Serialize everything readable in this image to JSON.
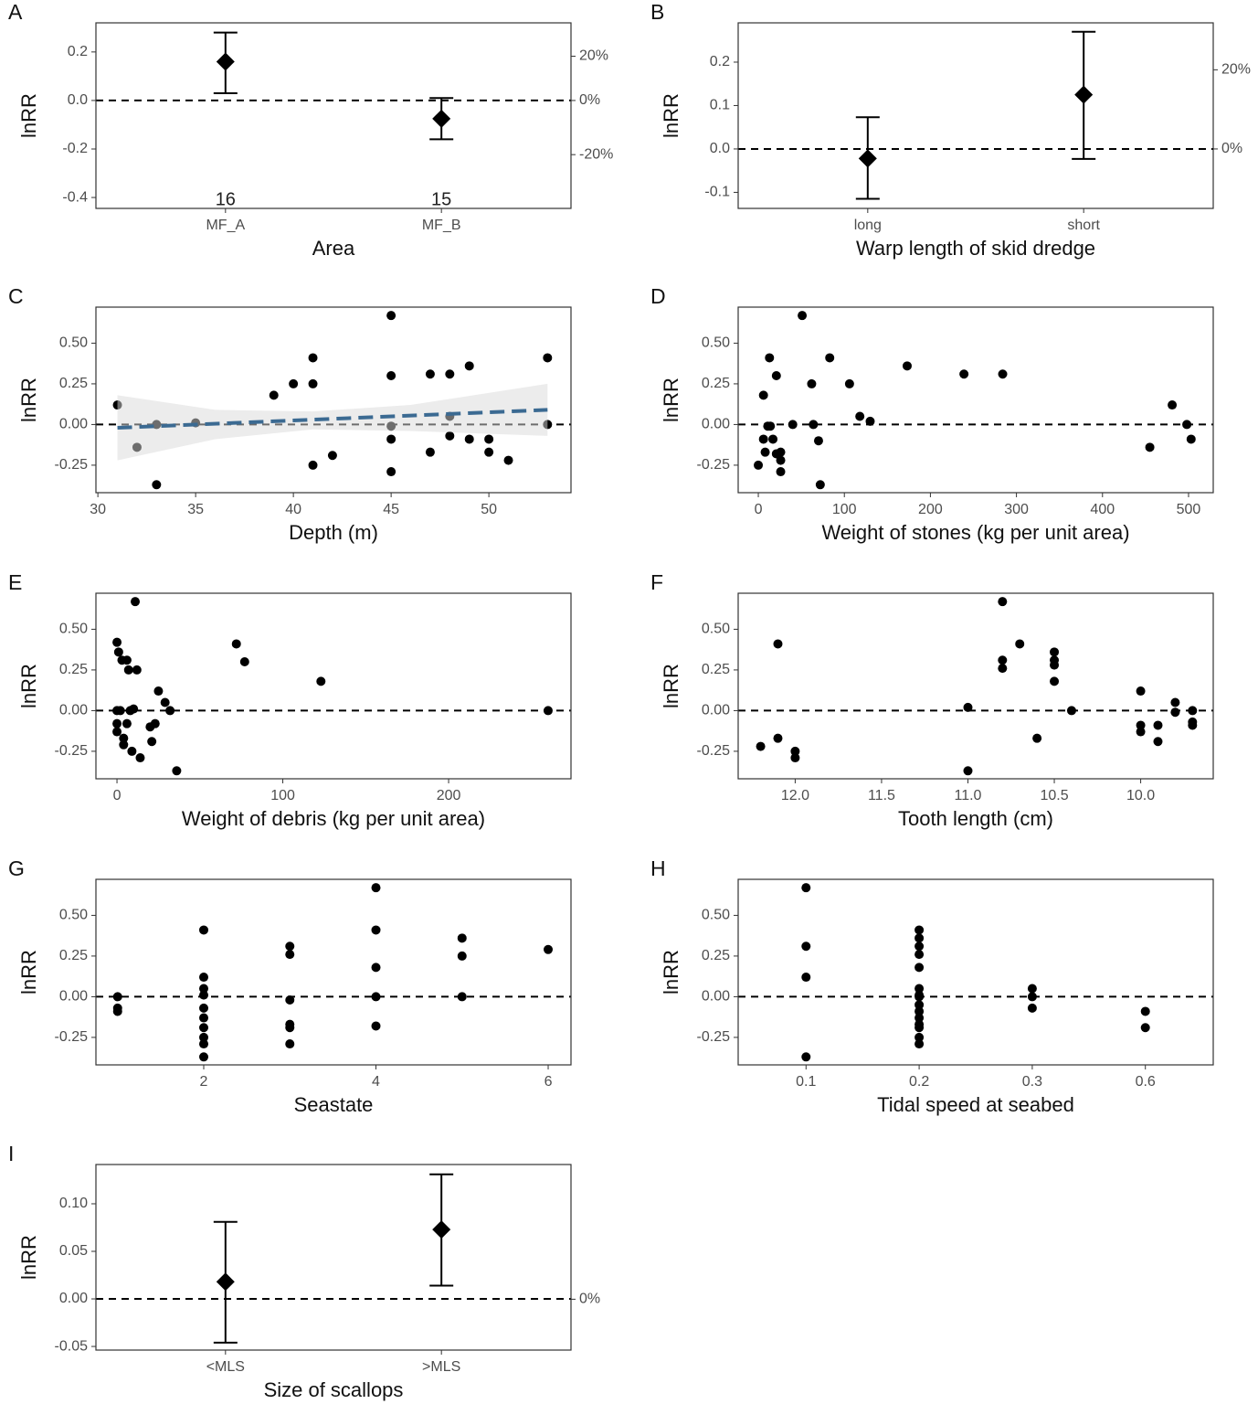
{
  "chart_data": [
    {
      "panel": "A",
      "type": "pointrange",
      "xlabel": "Area",
      "ylabel": "lnRR",
      "categories": [
        "MF_A",
        "MF_B"
      ],
      "values": [
        0.16,
        -0.075
      ],
      "lower": [
        0.03,
        -0.16
      ],
      "upper": [
        0.28,
        0.01
      ],
      "counts": [
        16,
        15
      ],
      "ylim": [
        -0.445,
        0.32
      ],
      "yticks": [
        0.2,
        {
          "value": 0,
          "label": "0.0"
        },
        -0.2,
        -0.4
      ],
      "y2lim": [
        -35.9,
        37.7
      ],
      "y2transform": "log-ratio",
      "y2ticks": [
        {
          "value": 20,
          "label": "20%"
        },
        {
          "value": 0,
          "label": "0%"
        },
        {
          "value": -20,
          "label": "-20%"
        }
      ],
      "refline": 0,
      "color": "#000000"
    },
    {
      "panel": "B",
      "type": "pointrange",
      "xlabel": "Warp length of skid dredge",
      "ylabel": "lnRR",
      "categories": [
        "long",
        "short"
      ],
      "values": [
        -0.022,
        0.125
      ],
      "lower": [
        -0.115,
        -0.023
      ],
      "upper": [
        0.073,
        0.27
      ],
      "ylim": [
        -0.137,
        0.2905
      ],
      "yticks": [
        0.2,
        0.1,
        {
          "value": 0,
          "label": "0.0"
        },
        -0.1
      ],
      "y2lim": [
        -12.8,
        33.7
      ],
      "y2transform": "log-ratio",
      "y2ticks": [
        {
          "value": 20,
          "label": "20%"
        },
        {
          "value": 0,
          "label": "0%"
        }
      ],
      "refline": 0,
      "color": "#000000"
    },
    {
      "panel": "C",
      "type": "scatter",
      "xlabel": "Depth (m)",
      "ylabel": "lnRR",
      "x": [
        31,
        32,
        33,
        33,
        35,
        39,
        40,
        41,
        41,
        41,
        42,
        45,
        45,
        45,
        45,
        45,
        47,
        47,
        48,
        48,
        48,
        49,
        49,
        50,
        50,
        51,
        53,
        53
      ],
      "y": [
        0.12,
        -0.14,
        0.0,
        -0.37,
        0.01,
        0.18,
        0.25,
        0.41,
        0.25,
        -0.25,
        -0.19,
        0.67,
        0.3,
        -0.01,
        -0.09,
        -0.29,
        0.31,
        -0.17,
        0.31,
        0.05,
        -0.07,
        0.36,
        -0.09,
        -0.09,
        -0.17,
        -0.22,
        0.41,
        0.0
      ],
      "band": {
        "x": [
          31,
          36,
          41,
          46,
          53
        ],
        "lower": [
          -0.22,
          -0.09,
          -0.03,
          -0.04,
          -0.07
        ],
        "upper": [
          0.18,
          0.09,
          0.08,
          0.12,
          0.25
        ],
        "color": "#d9d9d9"
      },
      "trend": {
        "x": [
          31,
          53
        ],
        "y": [
          -0.02,
          0.09
        ],
        "color": "#3b6a92"
      },
      "xlim": [
        29.9,
        54.2
      ],
      "xticks": [
        30,
        35,
        40,
        45,
        50
      ],
      "ylim": [
        -0.419,
        0.7215
      ],
      "yticks": [
        {
          "value": 0.5,
          "label": "0.50"
        },
        0.25,
        {
          "value": 0,
          "label": "0.00"
        },
        -0.25
      ],
      "refline": 0,
      "color": "#000000"
    },
    {
      "panel": "D",
      "type": "scatter",
      "xlabel": "Weight of stones (kg per unit area)",
      "ylabel": "lnRR",
      "x": [
        0,
        6,
        6,
        8,
        13,
        11,
        14,
        17,
        21,
        21,
        26,
        26,
        26,
        51,
        40,
        62,
        64,
        70,
        72,
        83,
        106,
        118,
        130,
        173,
        239,
        284,
        455,
        481,
        498,
        503
      ],
      "y": [
        -0.25,
        0.18,
        -0.09,
        -0.17,
        0.41,
        -0.01,
        -0.01,
        -0.09,
        0.3,
        -0.18,
        -0.22,
        -0.29,
        -0.17,
        0.67,
        0.0,
        0.25,
        0.0,
        -0.1,
        -0.37,
        0.41,
        0.25,
        0.05,
        0.02,
        0.36,
        0.31,
        0.31,
        -0.14,
        0.12,
        0.0,
        -0.09
      ],
      "xlim": [
        -23.4,
        528.7
      ],
      "xticks": [
        0,
        100,
        200,
        300,
        400,
        500
      ],
      "ylim": [
        -0.419,
        0.7215
      ],
      "yticks": [
        {
          "value": 0.5,
          "label": "0.50"
        },
        0.25,
        {
          "value": 0,
          "label": "0.00"
        },
        -0.25
      ],
      "refline": 0,
      "color": "#000000"
    },
    {
      "panel": "E",
      "type": "scatter",
      "xlabel": "Weight of debris (kg per unit area)",
      "ylabel": "lnRR",
      "x": [
        0,
        1,
        0,
        0,
        0,
        2,
        3,
        4,
        4,
        6,
        7,
        8,
        10,
        11,
        9,
        12,
        14,
        6,
        20,
        21,
        23,
        25,
        29,
        32,
        36,
        72,
        77,
        123,
        260
      ],
      "y": [
        0.42,
        0.36,
        0.0,
        -0.08,
        -0.13,
        0.0,
        0.31,
        -0.17,
        -0.21,
        0.31,
        0.25,
        0.0,
        0.01,
        0.67,
        -0.25,
        0.25,
        -0.29,
        -0.08,
        -0.1,
        -0.19,
        -0.08,
        0.12,
        0.05,
        0.0,
        -0.37,
        0.41,
        0.3,
        0.18,
        0.0
      ],
      "xlim": [
        -12.7,
        273.8
      ],
      "xticks": [
        0,
        100,
        200
      ],
      "ylim": [
        -0.419,
        0.7215
      ],
      "yticks": [
        {
          "value": 0.5,
          "label": "0.50"
        },
        0.25,
        {
          "value": 0,
          "label": "0.00"
        },
        -0.25
      ],
      "refline": 0,
      "color": "#000000"
    },
    {
      "panel": "F",
      "type": "scatter",
      "xlabel": "Tooth length (cm)",
      "ylabel": "lnRR",
      "x": [
        12.2,
        12.1,
        12.1,
        12.0,
        12.0,
        11.0,
        11.0,
        10.8,
        10.8,
        10.8,
        10.7,
        10.6,
        10.5,
        10.5,
        10.5,
        10.5,
        10.4,
        10.0,
        10.0,
        10.0,
        9.9,
        9.9,
        9.8,
        9.8,
        9.7,
        9.7,
        9.7
      ],
      "y": [
        -0.22,
        0.41,
        -0.17,
        -0.25,
        -0.29,
        0.02,
        -0.37,
        0.67,
        0.31,
        0.26,
        0.41,
        -0.17,
        0.36,
        0.31,
        0.28,
        0.18,
        0.0,
        0.12,
        -0.09,
        -0.13,
        -0.09,
        -0.19,
        0.05,
        -0.01,
        0.0,
        -0.07,
        -0.09
      ],
      "xlim": [
        12.33,
        9.58
      ],
      "xticks": [
        {
          "value": 12,
          "label": "12.0"
        },
        11.5,
        {
          "value": 11,
          "label": "11.0"
        },
        10.5,
        {
          "value": 10,
          "label": "10.0"
        }
      ],
      "ylim": [
        -0.419,
        0.7215
      ],
      "yticks": [
        {
          "value": 0.5,
          "label": "0.50"
        },
        0.25,
        {
          "value": 0,
          "label": "0.00"
        },
        -0.25
      ],
      "refline": 0,
      "color": "#000000"
    },
    {
      "panel": "G",
      "type": "scatter",
      "xlabel": "Seastate",
      "ylabel": "lnRR",
      "x": [
        1,
        1,
        1,
        2,
        2,
        2,
        2,
        2,
        2,
        2,
        2,
        2,
        2,
        3,
        3,
        3,
        3,
        3,
        3,
        4,
        4,
        4,
        4,
        4,
        5,
        5,
        5,
        6
      ],
      "y": [
        0.0,
        -0.07,
        -0.09,
        0.41,
        0.12,
        0.05,
        0.01,
        -0.07,
        -0.13,
        -0.19,
        -0.25,
        -0.29,
        -0.37,
        0.31,
        0.26,
        -0.02,
        -0.17,
        -0.19,
        -0.29,
        0.67,
        0.41,
        0.18,
        0.0,
        -0.18,
        0.36,
        0.25,
        0.0,
        0.29
      ],
      "xlim": [
        0.748,
        6.265
      ],
      "xticks": [
        2,
        4,
        6
      ],
      "ylim": [
        -0.419,
        0.7215
      ],
      "yticks": [
        {
          "value": 0.5,
          "label": "0.50"
        },
        0.25,
        {
          "value": 0,
          "label": "0.00"
        },
        -0.25
      ],
      "refline": 0,
      "color": "#000000"
    },
    {
      "panel": "H",
      "type": "strip",
      "xlabel": "Tidal speed at seabed",
      "ylabel": "lnRR",
      "categories": [
        "0.1",
        "0.2",
        "0.3",
        "0.6"
      ],
      "values": [
        [
          0.67,
          0.31,
          0.12,
          -0.37
        ],
        [
          0.41,
          0.36,
          0.31,
          0.26,
          0.18,
          0.05,
          0.01,
          0.0,
          -0.05,
          -0.09,
          -0.13,
          -0.17,
          -0.19,
          -0.25,
          -0.29
        ],
        [
          0.05,
          0.0,
          -0.07
        ],
        [
          -0.09,
          -0.19
        ]
      ],
      "ylim": [
        -0.419,
        0.7215
      ],
      "yticks": [
        {
          "value": 0.5,
          "label": "0.50"
        },
        0.25,
        {
          "value": 0,
          "label": "0.00"
        },
        -0.25
      ],
      "refline": 0,
      "color": "#000000"
    },
    {
      "panel": "I",
      "type": "pointrange",
      "xlabel": "Size of scallops",
      "ylabel": "lnRR",
      "categories": [
        "<MLS",
        ">MLS"
      ],
      "values": [
        0.018,
        0.073
      ],
      "lower": [
        -0.046,
        0.014
      ],
      "upper": [
        0.081,
        0.131
      ],
      "ylim": [
        -0.0538,
        0.1413
      ],
      "yticks": [
        {
          "value": 0.1,
          "label": "0.10"
        },
        0.05,
        {
          "value": 0,
          "label": "0.00"
        },
        -0.05
      ],
      "y2lim": [
        -5.2,
        15.2
      ],
      "y2transform": "log-ratio",
      "y2ticks": [
        {
          "value": 0,
          "label": "0%"
        }
      ],
      "refline": 0,
      "color": "#000000"
    }
  ]
}
